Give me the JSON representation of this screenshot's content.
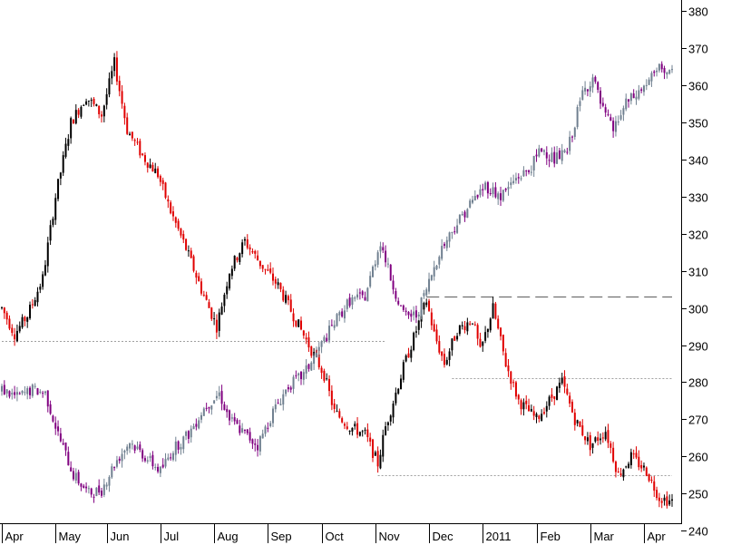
{
  "colors": {
    "background": "#ffffff",
    "axis": "#000000",
    "bull_a": "#000000",
    "bear_a": "#e00000",
    "bull_b": "#708090",
    "bear_b": "#800080",
    "guide": "#a0a0a0"
  },
  "chart_data": {
    "type": "candlestick",
    "title": "",
    "xlabel": "",
    "ylabel": "",
    "y_axis_position": "right",
    "ylim": [
      242,
      383
    ],
    "y_ticks": [
      380,
      370,
      360,
      350,
      340,
      330,
      320,
      310,
      300,
      290,
      280,
      270,
      260,
      250,
      240
    ],
    "x_range": [
      0,
      262
    ],
    "x_ticks": [
      {
        "label": "Apr",
        "x": 0
      },
      {
        "label": "May",
        "x": 21
      },
      {
        "label": "Jun",
        "x": 41
      },
      {
        "label": "Jul",
        "x": 62
      },
      {
        "label": "Aug",
        "x": 83
      },
      {
        "label": "Sep",
        "x": 104
      },
      {
        "label": "Oct",
        "x": 125
      },
      {
        "label": "Nov",
        "x": 146
      },
      {
        "label": "Dec",
        "x": 167
      },
      {
        "label": "2011",
        "x": 188
      },
      {
        "label": "Feb",
        "x": 209
      },
      {
        "label": "Mar",
        "x": 230
      },
      {
        "label": "Apr",
        "x": 251
      }
    ],
    "series": [
      {
        "key": "a",
        "anchors": [
          [
            0,
            300
          ],
          [
            5,
            293
          ],
          [
            10,
            298
          ],
          [
            16,
            308
          ],
          [
            21,
            330
          ],
          [
            27,
            350
          ],
          [
            33,
            357
          ],
          [
            39,
            352
          ],
          [
            44,
            366
          ],
          [
            49,
            348
          ],
          [
            55,
            341
          ],
          [
            61,
            336
          ],
          [
            66,
            326
          ],
          [
            72,
            316
          ],
          [
            78,
            305
          ],
          [
            84,
            295
          ],
          [
            89,
            310
          ],
          [
            95,
            318
          ],
          [
            101,
            312
          ],
          [
            108,
            306
          ],
          [
            114,
            298
          ],
          [
            120,
            290
          ],
          [
            126,
            282
          ],
          [
            130,
            272
          ],
          [
            136,
            268
          ],
          [
            142,
            266
          ],
          [
            147,
            258
          ],
          [
            150,
            268
          ],
          [
            157,
            284
          ],
          [
            163,
            296
          ],
          [
            166,
            302
          ],
          [
            169,
            293
          ],
          [
            173,
            285
          ],
          [
            178,
            294
          ],
          [
            184,
            297
          ],
          [
            187,
            288
          ],
          [
            192,
            300
          ],
          [
            197,
            285
          ],
          [
            202,
            275
          ],
          [
            209,
            270
          ],
          [
            214,
            275
          ],
          [
            219,
            280
          ],
          [
            224,
            270
          ],
          [
            230,
            263
          ],
          [
            236,
            267
          ],
          [
            241,
            255
          ],
          [
            246,
            260
          ],
          [
            252,
            256
          ],
          [
            257,
            249
          ],
          [
            261,
            248
          ]
        ]
      },
      {
        "key": "b",
        "anchors": [
          [
            0,
            278
          ],
          [
            6,
            276
          ],
          [
            12,
            278
          ],
          [
            17,
            277
          ],
          [
            22,
            266
          ],
          [
            28,
            255
          ],
          [
            34,
            250
          ],
          [
            39,
            251
          ],
          [
            44,
            258
          ],
          [
            50,
            264
          ],
          [
            56,
            260
          ],
          [
            62,
            256
          ],
          [
            67,
            262
          ],
          [
            73,
            266
          ],
          [
            79,
            273
          ],
          [
            85,
            277
          ],
          [
            89,
            270
          ],
          [
            95,
            266
          ],
          [
            100,
            263
          ],
          [
            106,
            272
          ],
          [
            112,
            279
          ],
          [
            118,
            282
          ],
          [
            124,
            289
          ],
          [
            130,
            296
          ],
          [
            136,
            302
          ],
          [
            142,
            303
          ],
          [
            148,
            318
          ],
          [
            152,
            308
          ],
          [
            157,
            298
          ],
          [
            162,
            298
          ],
          [
            166,
            305
          ],
          [
            171,
            315
          ],
          [
            177,
            322
          ],
          [
            183,
            328
          ],
          [
            189,
            333
          ],
          [
            195,
            330
          ],
          [
            201,
            335
          ],
          [
            206,
            337
          ],
          [
            211,
            343
          ],
          [
            216,
            340
          ],
          [
            221,
            342
          ],
          [
            227,
            358
          ],
          [
            231,
            362
          ],
          [
            235,
            353
          ],
          [
            239,
            348
          ],
          [
            244,
            355
          ],
          [
            249,
            358
          ],
          [
            254,
            362
          ],
          [
            258,
            365
          ],
          [
            261,
            363
          ]
        ]
      }
    ],
    "reference_lines": [
      {
        "x1": 0,
        "x2": 150,
        "y": 291,
        "style": "dotted"
      },
      {
        "x1": 166,
        "x2": 262,
        "y": 303,
        "style": "dashed"
      },
      {
        "x1": 176,
        "x2": 262,
        "y": 281,
        "style": "dotted"
      },
      {
        "x1": 147,
        "x2": 262,
        "y": 255,
        "style": "dotted"
      }
    ]
  }
}
